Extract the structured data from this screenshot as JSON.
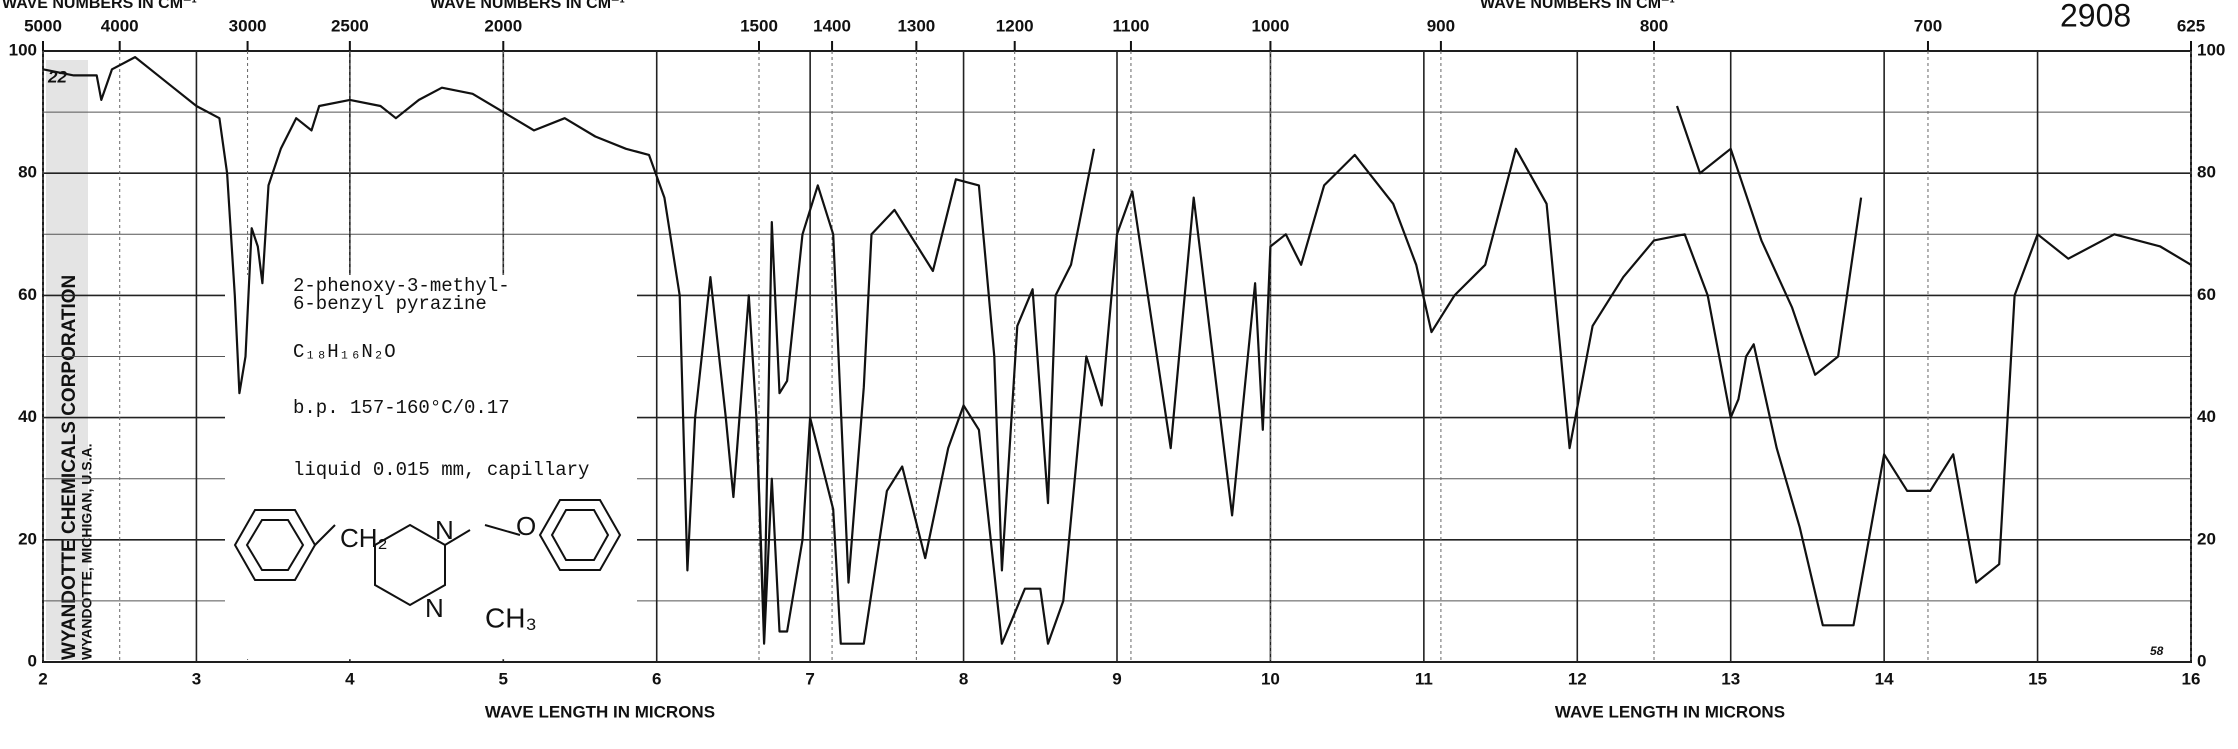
{
  "chart_data": {
    "type": "line",
    "top_axis_title": "WAVE NUMBERS IN CM⁻¹",
    "x_label": "WAVE LENGTH IN MICRONS",
    "spectrum_number": "2908",
    "chart_number": "22",
    "corner_mark": "58",
    "publisher": "WYANDOTTE CHEMICALS CORPORATION",
    "publisher_location": "WYANDOTTE, MICHIGAN, U.S.A.",
    "sample": {
      "name_line1": "2-phenoxy-3-methyl-",
      "name_line2": "6-benzyl pyrazine",
      "formula": "C₁₈H₁₆N₂O",
      "boiling_point": "b.p. 157-160°C/0.17",
      "conditions": "liquid 0.015 mm, capillary"
    },
    "structure": {
      "n1": "N",
      "n2": "N",
      "o": "O",
      "ch2": "CH₂",
      "ch3": "CH₃"
    },
    "xlim": [
      2,
      16
    ],
    "xticks": [
      2,
      3,
      4,
      5,
      6,
      7,
      8,
      9,
      10,
      11,
      12,
      13,
      14,
      15,
      16
    ],
    "x2ticks": [
      5000,
      4000,
      3000,
      2500,
      2000,
      1500,
      1400,
      1300,
      1200,
      1100,
      1000,
      900,
      800,
      700,
      625
    ],
    "ylim": [
      0,
      100
    ],
    "yticks": [
      0,
      20,
      40,
      60,
      80,
      100
    ],
    "yminor": [
      10,
      30,
      50,
      70,
      90
    ],
    "grid": true,
    "series": [
      {
        "color": "#111",
        "x": [
          2.0,
          2.2,
          2.35,
          2.38,
          2.45,
          2.6,
          2.7,
          2.85,
          3.0,
          3.15,
          3.2,
          3.25,
          3.28,
          3.32,
          3.36,
          3.4,
          3.43,
          3.47,
          3.55,
          3.65,
          3.75,
          3.8,
          4.0,
          4.2,
          4.3,
          4.45,
          4.6,
          4.8,
          5.0,
          5.2,
          5.4,
          5.6,
          5.8,
          5.95,
          6.05,
          6.15,
          6.2,
          6.25,
          6.35,
          6.45,
          6.5,
          6.6,
          6.65,
          6.7,
          6.75,
          6.8,
          6.85,
          6.95,
          7.05,
          7.15,
          7.25,
          7.35,
          7.4,
          7.55,
          7.7,
          7.8,
          7.95,
          8.1,
          8.2,
          8.25,
          8.35,
          8.45,
          8.55,
          8.6,
          8.7,
          8.85
        ],
        "values": [
          97,
          96,
          96,
          92,
          97,
          99,
          97,
          94,
          91,
          89,
          80,
          60,
          44,
          50,
          71,
          68,
          62,
          78,
          84,
          89,
          87,
          91,
          92,
          91,
          89,
          92,
          94,
          93,
          90,
          87,
          89,
          86,
          84,
          83,
          76,
          60,
          15,
          40,
          63,
          40,
          27,
          60,
          40,
          5,
          72,
          44,
          46,
          70,
          78,
          70,
          13,
          45,
          70,
          74,
          68,
          64,
          79,
          78,
          50,
          15,
          55,
          61,
          26,
          60,
          65,
          84
        ]
      },
      {
        "color": "#111",
        "x": [
          6.65,
          6.7,
          6.75,
          6.8,
          6.85,
          6.95,
          7.0,
          7.15,
          7.2,
          7.35,
          7.5,
          7.6,
          7.75,
          7.9,
          8.0,
          8.1,
          8.25,
          8.4,
          8.5,
          8.55,
          8.65,
          8.8,
          8.9,
          9.0,
          9.1,
          9.35,
          9.5,
          9.75,
          9.9,
          9.95,
          10.0,
          10.1,
          10.2,
          10.35,
          10.55,
          10.8,
          10.95,
          11.05,
          11.2,
          11.4,
          11.6,
          11.8,
          11.95,
          12.1,
          12.3,
          12.5,
          12.7,
          12.85,
          13.0,
          13.05,
          13.1,
          13.15,
          13.3,
          13.45,
          13.6,
          13.8,
          14.0,
          14.15,
          14.3,
          14.45,
          14.6,
          14.75,
          14.85,
          15.0,
          15.2,
          15.5,
          15.8,
          16.0
        ],
        "values": [
          40,
          3,
          30,
          5,
          5,
          20,
          40,
          25,
          3,
          3,
          28,
          32,
          17,
          35,
          42,
          38,
          3,
          12,
          12,
          3,
          10,
          50,
          42,
          70,
          77,
          35,
          76,
          24,
          62,
          38,
          68,
          70,
          65,
          78,
          83,
          75,
          65,
          54,
          60,
          65,
          84,
          75,
          35,
          55,
          63,
          69,
          70,
          60,
          40,
          43,
          50,
          52,
          35,
          22,
          6,
          6,
          34,
          28,
          28,
          34,
          13,
          16,
          60,
          70,
          66,
          70,
          68,
          65
        ]
      },
      {
        "color": "#111",
        "x": [
          12.65,
          12.8,
          12.95,
          13.0,
          13.2,
          13.4,
          13.55,
          13.7,
          13.85
        ],
        "values": [
          91,
          80,
          83,
          84,
          69,
          58,
          47,
          50,
          76
        ]
      }
    ]
  }
}
